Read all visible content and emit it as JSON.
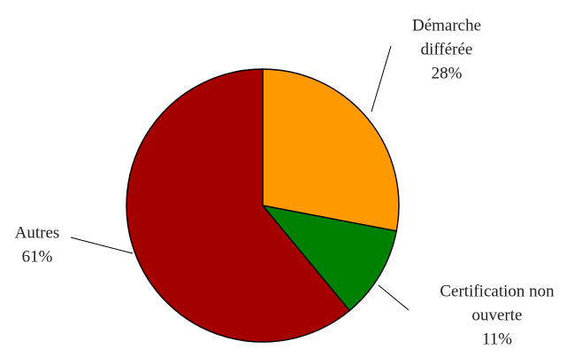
{
  "chart_data": {
    "type": "pie",
    "title": "",
    "legend": "none",
    "slices": [
      {
        "label": "Démarche différée",
        "label_lines": [
          "Démarche",
          "différée"
        ],
        "value": 28,
        "value_label": "28%",
        "color": "#FF9900"
      },
      {
        "label": "Certification non ouverte",
        "label_lines": [
          "Certification non",
          "ouverte"
        ],
        "value": 11,
        "value_label": "11%",
        "color": "#008000"
      },
      {
        "label": "Autres",
        "label_lines": [
          "Autres"
        ],
        "value": 61,
        "value_label": "61%",
        "color": "#A50000"
      }
    ]
  }
}
